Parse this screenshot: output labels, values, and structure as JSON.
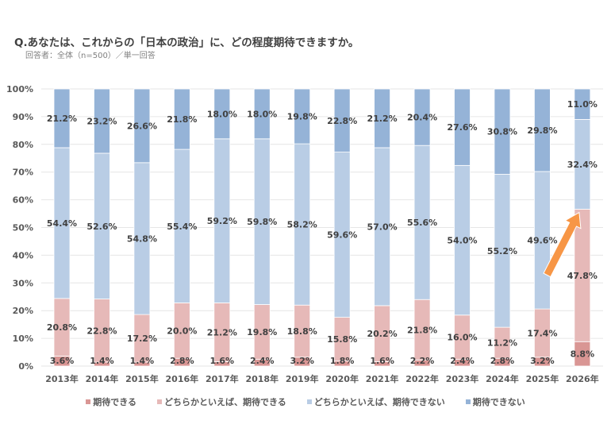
{
  "title": "Q.あなたは、これからの「日本の政治」に、どの程度期待できますか。",
  "subtitle": "回答者：全体（n=500）／単一回答",
  "chart_data": {
    "type": "bar",
    "stacked": true,
    "title": "Q.あなたは、これからの「日本の政治」に、どの程度期待できますか。",
    "subtitle": "回答者：全体（n=500）／単一回答",
    "xlabel": "",
    "ylabel": "",
    "ylim": [
      0,
      100
    ],
    "yticks": [
      "0%",
      "10%",
      "20%",
      "30%",
      "40%",
      "50%",
      "60%",
      "70%",
      "80%",
      "90%",
      "100%"
    ],
    "grid": true,
    "legend_position": "bottom",
    "categories": [
      "2013年",
      "2014年",
      "2015年",
      "2016年",
      "2017年",
      "2018年",
      "2019年",
      "2020年",
      "2021年",
      "2022年",
      "2023年",
      "2024年",
      "2025年",
      "2026年"
    ],
    "series": [
      {
        "name": "期待できる",
        "color": "#d99694",
        "values": [
          3.6,
          1.4,
          1.4,
          2.8,
          1.6,
          2.4,
          3.2,
          1.8,
          1.6,
          2.2,
          2.4,
          2.8,
          3.2,
          8.8
        ],
        "labels": [
          "3.6%",
          "1.4%",
          "1.4%",
          "2.8%",
          "1.6%",
          "2.4%",
          "3.2%",
          "1.8%",
          "1.6%",
          "2.2%",
          "2.4%",
          "2.8%",
          "3.2%",
          "8.8%"
        ]
      },
      {
        "name": "どちらかといえば、期待できる",
        "color": "#e6b9b8",
        "values": [
          20.8,
          22.8,
          17.2,
          20.0,
          21.2,
          19.8,
          18.8,
          15.8,
          20.2,
          21.8,
          16.0,
          11.2,
          17.4,
          47.8
        ],
        "labels": [
          "20.8%",
          "22.8%",
          "17.2%",
          "20.0%",
          "21.2%",
          "19.8%",
          "18.8%",
          "15.8%",
          "20.2%",
          "21.8%",
          "16.0%",
          "11.2%",
          "17.4%",
          "47.8%"
        ]
      },
      {
        "name": "どちらかといえば、期待できない",
        "color": "#b9cde5",
        "values": [
          54.4,
          52.6,
          54.8,
          55.4,
          59.2,
          59.8,
          58.2,
          59.6,
          57.0,
          55.6,
          54.0,
          55.2,
          49.6,
          32.4
        ],
        "labels": [
          "54.4%",
          "52.6%",
          "54.8%",
          "55.4%",
          "59.2%",
          "59.8%",
          "58.2%",
          "59.6%",
          "57.0%",
          "55.6%",
          "54.0%",
          "55.2%",
          "49.6%",
          "32.4%"
        ]
      },
      {
        "name": "期待できない",
        "color": "#95b3d7",
        "values": [
          21.2,
          23.2,
          26.6,
          21.8,
          18.0,
          18.0,
          19.8,
          22.8,
          21.2,
          20.4,
          27.6,
          30.8,
          29.8,
          11.0
        ],
        "labels": [
          "21.2%",
          "23.2%",
          "26.6%",
          "21.8%",
          "18.0%",
          "18.0%",
          "19.8%",
          "22.8%",
          "21.2%",
          "20.4%",
          "27.6%",
          "30.8%",
          "29.8%",
          "11.0%"
        ]
      }
    ],
    "annotations": [
      {
        "type": "arrow",
        "color": "#f79646",
        "from": {
          "category": "2025年",
          "value": 40
        },
        "to": {
          "category": "2026年",
          "value": 56
        }
      }
    ]
  }
}
